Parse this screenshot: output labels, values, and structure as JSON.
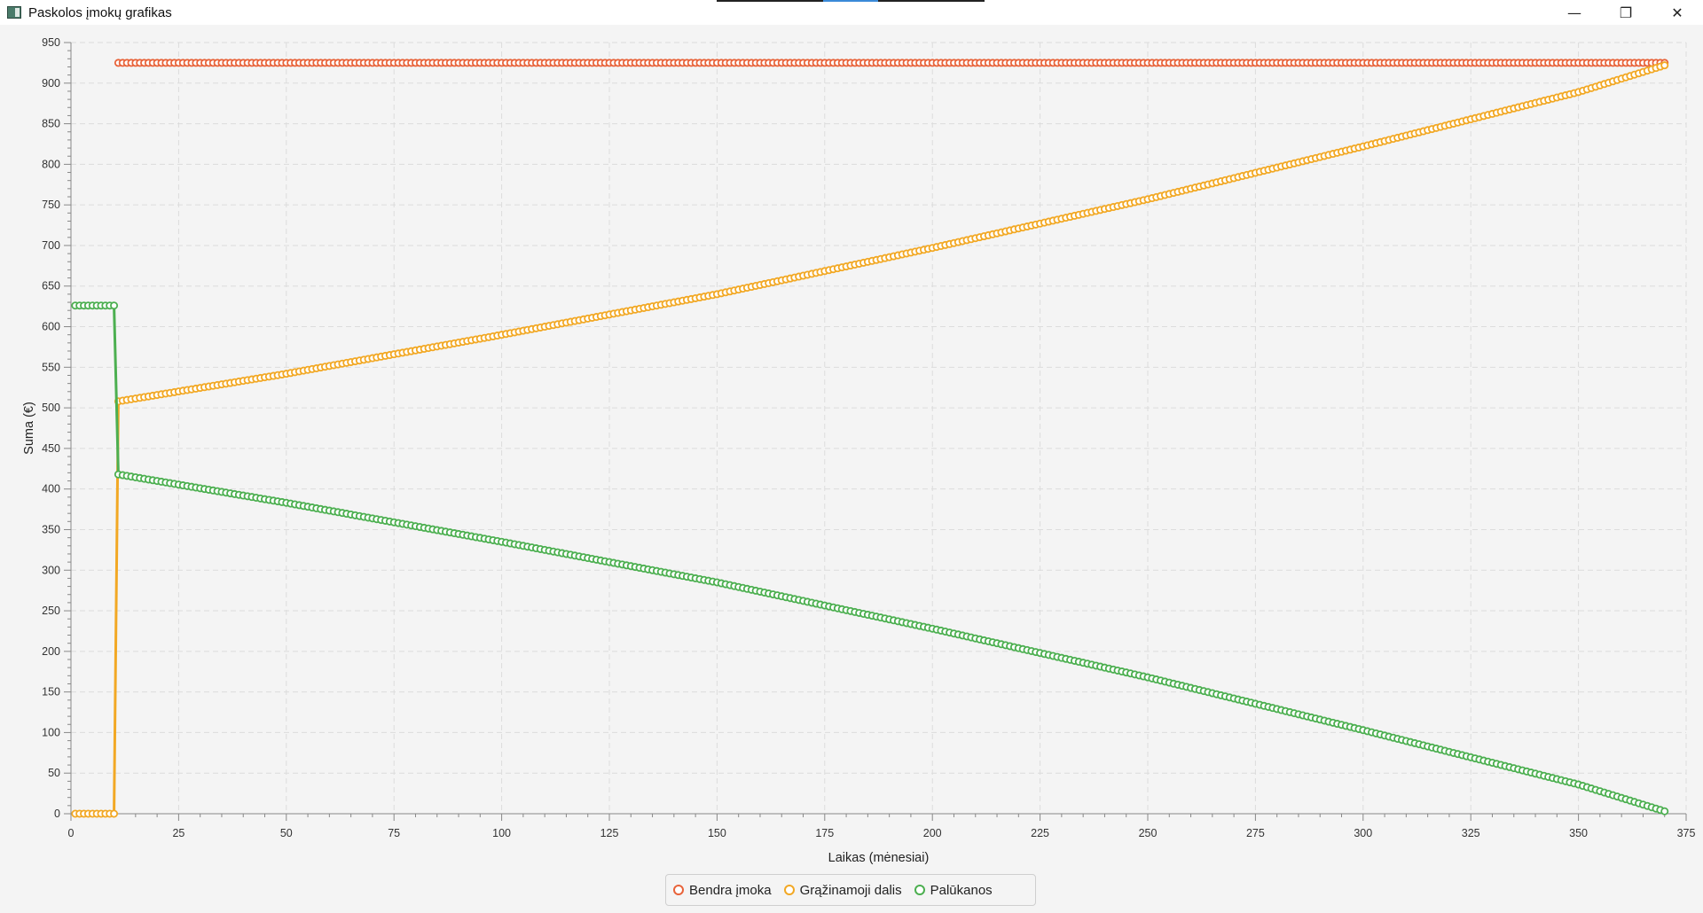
{
  "window": {
    "title": "Paskolos įmokų grafikas",
    "minimize_icon": "minimize-icon",
    "maximize_icon": "restore-icon",
    "close_icon": "close-icon"
  },
  "chart_data": {
    "type": "line",
    "title": "",
    "xlabel": "Laikas (mėnesiai)",
    "ylabel": "Suma (€)",
    "xlim": [
      0,
      375
    ],
    "ylim": [
      0,
      950
    ],
    "x_ticks": [
      "0",
      "25",
      "50",
      "75",
      "100",
      "125",
      "150",
      "175",
      "200",
      "225",
      "250",
      "275",
      "300",
      "325",
      "350",
      "375"
    ],
    "y_ticks": [
      "0",
      "50",
      "100",
      "150",
      "200",
      "250",
      "300",
      "350",
      "400",
      "450",
      "500",
      "550",
      "600",
      "650",
      "700",
      "750",
      "800",
      "850",
      "900",
      "950"
    ],
    "grid": true,
    "legend_position": "bottom-center",
    "markers": "hollow-circle",
    "series": [
      {
        "name": "Bendra įmoka",
        "color": "#e8633a",
        "points": [
          [
            11,
            925
          ],
          [
            370,
            925
          ]
        ],
        "start_x": 11,
        "end_x": 370
      },
      {
        "name": "Grąžinamoji dalis",
        "color": "#f2a824",
        "points": [
          [
            1,
            0
          ],
          [
            10,
            0
          ],
          [
            11,
            508
          ],
          [
            50,
            542
          ],
          [
            100,
            590
          ],
          [
            150,
            640
          ],
          [
            200,
            697
          ],
          [
            250,
            757
          ],
          [
            300,
            822
          ],
          [
            350,
            889
          ],
          [
            370,
            922
          ]
        ],
        "start_x": 1,
        "end_x": 370
      },
      {
        "name": "Palūkanos",
        "color": "#4caf50",
        "points": [
          [
            1,
            626
          ],
          [
            10,
            626
          ],
          [
            11,
            418
          ],
          [
            50,
            383
          ],
          [
            100,
            335
          ],
          [
            150,
            285
          ],
          [
            200,
            228
          ],
          [
            250,
            168
          ],
          [
            300,
            103
          ],
          [
            350,
            36
          ],
          [
            370,
            3
          ]
        ],
        "start_x": 1,
        "end_x": 370
      }
    ]
  }
}
